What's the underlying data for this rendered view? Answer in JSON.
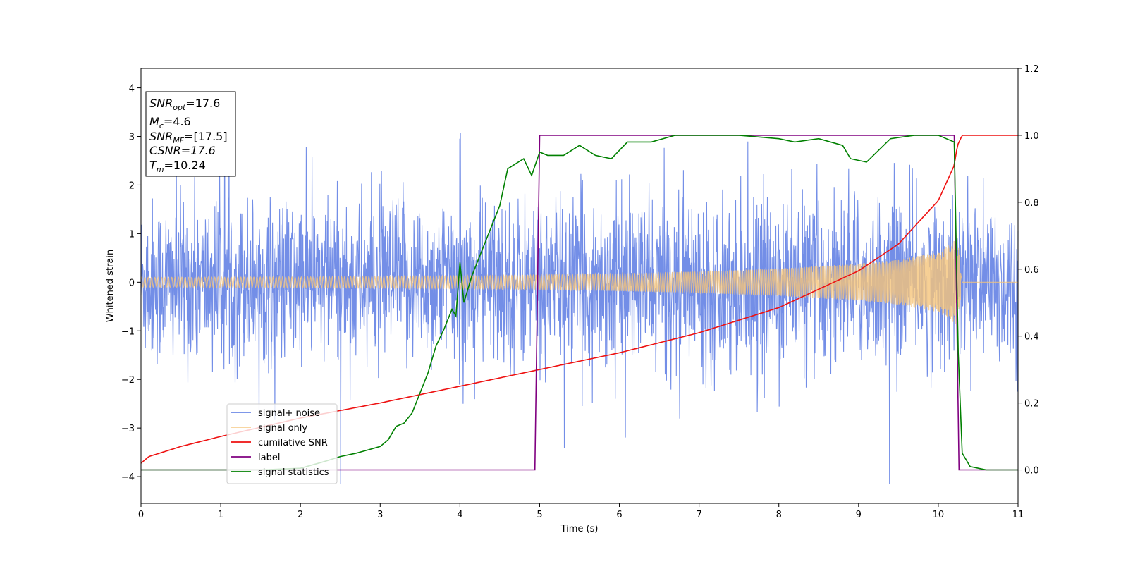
{
  "chart_data": {
    "type": "line",
    "xlabel": "Time (s)",
    "ylabel_left": "Whitened strain",
    "ylabel_right": "",
    "xlim": [
      0,
      11
    ],
    "ylim_left": [
      -4.55,
      4.4
    ],
    "ylim_right": [
      -0.1,
      1.2
    ],
    "xticks": [
      0,
      1,
      2,
      3,
      4,
      5,
      6,
      7,
      8,
      9,
      10,
      11
    ],
    "yticks_left": [
      -4,
      -3,
      -2,
      -1,
      0,
      1,
      2,
      3,
      4
    ],
    "yticks_right": [
      "0.0",
      "0.2",
      "0.4",
      "0.6",
      "0.8",
      "1.0",
      "1.2"
    ],
    "grid": false,
    "legend_position": "lower-left",
    "info_box": {
      "snr_opt_base": "SNR",
      "snr_opt_sub": "opt",
      "snr_opt_value": "=17.6",
      "mc_base": "M",
      "mc_sub": "c",
      "mc_value": "=4.6",
      "snr_mf_base": "SNR",
      "snr_mf_sub": "MF",
      "snr_mf_value": "=[17.5]",
      "csnr_text": "CSNR=17.6",
      "tm_base": "T",
      "tm_sub": "m",
      "tm_value": "=10.24"
    },
    "series": [
      {
        "name": "signal+ noise",
        "axis": "left",
        "color": "#6b88e6",
        "description_of_values": "whitened noise plus signal, envelope approx",
        "envelope": {
          "x": [
            0,
            11
          ],
          "typical_upper": 2.2,
          "typical_lower": -2.2,
          "max": 4.0,
          "min": -4.15
        }
      },
      {
        "name": "signal only",
        "axis": "left",
        "color": "#f5c47a",
        "amplitude_envelope": {
          "x": [
            0,
            2,
            4,
            5,
            6,
            7,
            8,
            9,
            9.5,
            10,
            10.2,
            10.24,
            10.3,
            11
          ],
          "amp": [
            0.1,
            0.11,
            0.13,
            0.15,
            0.18,
            0.22,
            0.28,
            0.38,
            0.46,
            0.62,
            0.85,
            0.95,
            0.0,
            0.0
          ]
        }
      },
      {
        "name": "cumilative SNR",
        "axis": "right",
        "color": "#ee1111",
        "x": [
          0,
          0.1,
          0.5,
          1,
          2,
          3,
          4,
          5,
          6,
          7,
          8,
          9,
          9.5,
          10,
          10.2,
          10.24,
          10.3,
          11
        ],
        "y": [
          0.02,
          0.04,
          0.07,
          0.1,
          0.155,
          0.2,
          0.25,
          0.3,
          0.35,
          0.41,
          0.485,
          0.595,
          0.675,
          0.805,
          0.91,
          0.97,
          1.0,
          1.0
        ]
      },
      {
        "name": "label",
        "axis": "right",
        "color": "#800080",
        "x": [
          0,
          4.94,
          5.0,
          10.2,
          10.26,
          11
        ],
        "y": [
          0.0,
          0.0,
          1.0,
          1.0,
          0.0,
          0.0
        ]
      },
      {
        "name": "signal statistics",
        "axis": "right",
        "color": "#008000",
        "x": [
          0,
          0.5,
          1,
          1.5,
          2,
          2.3,
          2.5,
          2.7,
          2.85,
          3.0,
          3.1,
          3.2,
          3.3,
          3.4,
          3.5,
          3.6,
          3.7,
          3.8,
          3.9,
          3.95,
          4.0,
          4.05,
          4.15,
          4.3,
          4.4,
          4.5,
          4.6,
          4.8,
          4.9,
          5.0,
          5.1,
          5.3,
          5.5,
          5.7,
          5.9,
          6.1,
          6.4,
          6.7,
          7.0,
          7.5,
          8.0,
          8.2,
          8.5,
          8.8,
          8.9,
          9.1,
          9.4,
          9.7,
          10.0,
          10.1,
          10.2,
          10.25,
          10.3,
          10.4,
          10.6,
          11
        ],
        "y": [
          0.0,
          0.0,
          0.0,
          0.0,
          0.005,
          0.025,
          0.04,
          0.05,
          0.06,
          0.07,
          0.09,
          0.13,
          0.14,
          0.17,
          0.23,
          0.29,
          0.37,
          0.42,
          0.48,
          0.46,
          0.62,
          0.5,
          0.58,
          0.67,
          0.73,
          0.79,
          0.9,
          0.93,
          0.88,
          0.95,
          0.94,
          0.94,
          0.97,
          0.94,
          0.93,
          0.98,
          0.98,
          1.0,
          1.0,
          1.0,
          0.99,
          0.98,
          0.99,
          0.97,
          0.93,
          0.92,
          0.99,
          1.0,
          1.0,
          0.99,
          0.98,
          0.35,
          0.05,
          0.01,
          0.0,
          0.0
        ]
      }
    ]
  }
}
